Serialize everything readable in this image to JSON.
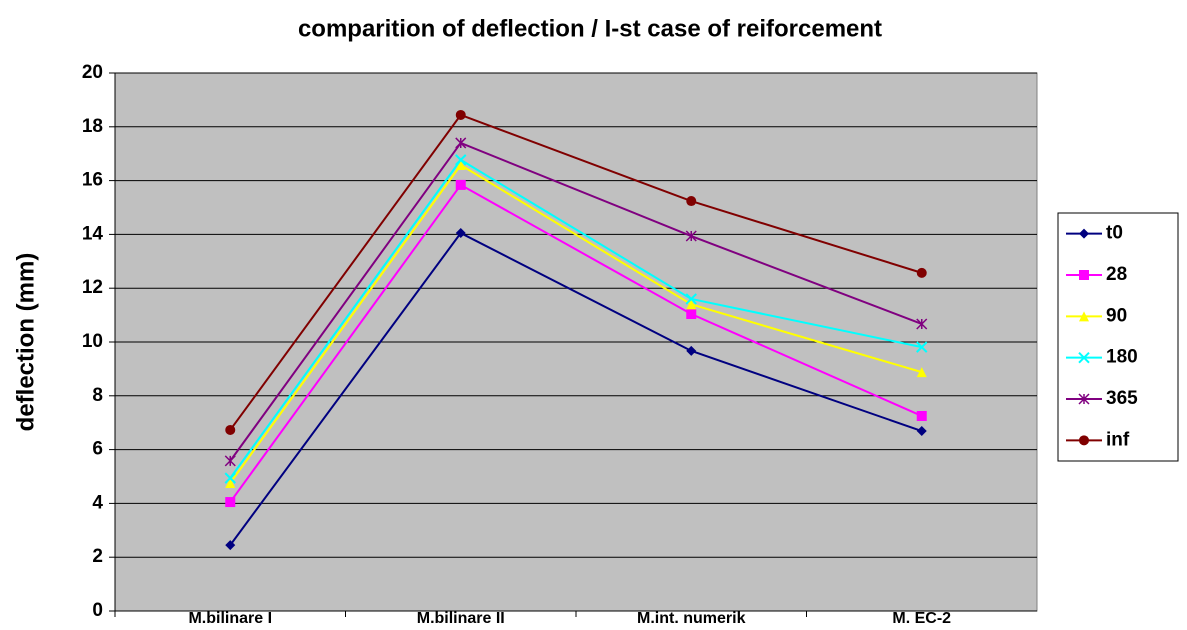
{
  "chart_data": {
    "type": "line",
    "title": "comparition of deflection /  I-st case of  reiforcement",
    "y_label": "deflection  (mm)",
    "categories": [
      "M.bilinare I",
      "M.bilinare II",
      "M.int. numerik",
      "M. EC-2"
    ],
    "series": [
      {
        "name": "t0",
        "color": "#000080",
        "marker": "diamond",
        "values": [
          2.45,
          14.05,
          9.67,
          6.69
        ]
      },
      {
        "name": "28",
        "color": "#FF00FF",
        "marker": "square",
        "values": [
          4.05,
          15.84,
          11.04,
          7.25
        ]
      },
      {
        "name": "90",
        "color": "#FFFF00",
        "marker": "triangle",
        "values": [
          4.76,
          16.58,
          11.4,
          8.88
        ]
      },
      {
        "name": "180",
        "color": "#00FFFF",
        "marker": "x",
        "values": [
          4.94,
          16.77,
          11.6,
          9.81
        ]
      },
      {
        "name": "365",
        "color": "#800080",
        "marker": "star",
        "values": [
          5.58,
          17.4,
          13.94,
          10.67
        ]
      },
      {
        "name": "inf",
        "color": "#800000",
        "marker": "circle",
        "values": [
          6.73,
          18.44,
          15.24,
          12.57
        ]
      }
    ],
    "ylim": [
      0,
      20
    ],
    "yticks": [
      0,
      2,
      4,
      6,
      8,
      10,
      12,
      14,
      16,
      18,
      20
    ],
    "grid": true,
    "legend": "right",
    "plot_background": "#C0C0C0"
  }
}
